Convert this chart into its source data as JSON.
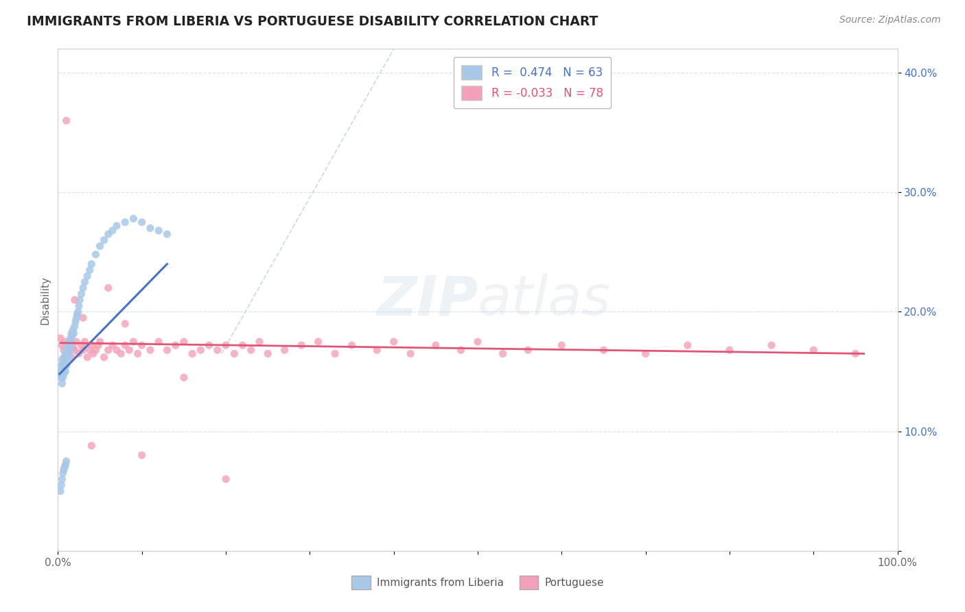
{
  "title": "IMMIGRANTS FROM LIBERIA VS PORTUGUESE DISABILITY CORRELATION CHART",
  "source": "Source: ZipAtlas.com",
  "ylabel": "Disability",
  "xlim": [
    0.0,
    1.0
  ],
  "ylim": [
    0.0,
    0.42
  ],
  "xticks": [
    0.0,
    0.1,
    0.2,
    0.3,
    0.4,
    0.5,
    0.6,
    0.7,
    0.8,
    0.9,
    1.0
  ],
  "xtick_labels": [
    "0.0%",
    "",
    "",
    "",
    "",
    "",
    "",
    "",
    "",
    "",
    "100.0%"
  ],
  "yticks": [
    0.0,
    0.1,
    0.2,
    0.3,
    0.4
  ],
  "ytick_labels": [
    "",
    "10.0%",
    "20.0%",
    "30.0%",
    "40.0%"
  ],
  "color_liberia": "#a8c8e8",
  "color_portuguese": "#f4a0b8",
  "color_line_liberia": "#4472c4",
  "color_line_portuguese": "#e05575",
  "color_trend_dashed": "#b8ccdd",
  "background_color": "#ffffff",
  "grid_color": "#d8e4f0",
  "watermark_zip": "ZIP",
  "watermark_atlas": "atlas",
  "liberia_x": [
    0.002,
    0.003,
    0.004,
    0.004,
    0.005,
    0.005,
    0.006,
    0.006,
    0.007,
    0.007,
    0.008,
    0.008,
    0.009,
    0.009,
    0.01,
    0.01,
    0.011,
    0.011,
    0.012,
    0.012,
    0.013,
    0.013,
    0.014,
    0.015,
    0.015,
    0.016,
    0.016,
    0.017,
    0.018,
    0.019,
    0.02,
    0.021,
    0.022,
    0.023,
    0.024,
    0.025,
    0.026,
    0.028,
    0.03,
    0.032,
    0.035,
    0.038,
    0.04,
    0.045,
    0.05,
    0.055,
    0.06,
    0.065,
    0.07,
    0.08,
    0.09,
    0.1,
    0.11,
    0.12,
    0.13,
    0.003,
    0.004,
    0.005,
    0.006,
    0.007,
    0.008,
    0.009,
    0.01
  ],
  "liberia_y": [
    0.15,
    0.148,
    0.145,
    0.155,
    0.14,
    0.16,
    0.145,
    0.155,
    0.148,
    0.162,
    0.152,
    0.158,
    0.15,
    0.165,
    0.155,
    0.168,
    0.16,
    0.17,
    0.162,
    0.172,
    0.165,
    0.175,
    0.168,
    0.172,
    0.178,
    0.175,
    0.182,
    0.18,
    0.185,
    0.182,
    0.188,
    0.192,
    0.195,
    0.198,
    0.2,
    0.205,
    0.21,
    0.215,
    0.22,
    0.225,
    0.23,
    0.235,
    0.24,
    0.248,
    0.255,
    0.26,
    0.265,
    0.268,
    0.272,
    0.275,
    0.278,
    0.275,
    0.27,
    0.268,
    0.265,
    0.05,
    0.055,
    0.06,
    0.065,
    0.068,
    0.07,
    0.072,
    0.075
  ],
  "portuguese_x": [
    0.003,
    0.005,
    0.007,
    0.008,
    0.01,
    0.012,
    0.013,
    0.015,
    0.016,
    0.018,
    0.02,
    0.022,
    0.025,
    0.028,
    0.03,
    0.032,
    0.035,
    0.038,
    0.04,
    0.042,
    0.045,
    0.048,
    0.05,
    0.055,
    0.06,
    0.065,
    0.07,
    0.075,
    0.08,
    0.085,
    0.09,
    0.095,
    0.1,
    0.11,
    0.12,
    0.13,
    0.14,
    0.15,
    0.16,
    0.17,
    0.18,
    0.19,
    0.2,
    0.21,
    0.22,
    0.23,
    0.24,
    0.25,
    0.27,
    0.29,
    0.31,
    0.33,
    0.35,
    0.38,
    0.4,
    0.42,
    0.45,
    0.48,
    0.5,
    0.53,
    0.56,
    0.6,
    0.65,
    0.7,
    0.75,
    0.8,
    0.85,
    0.9,
    0.95,
    0.01,
    0.02,
    0.03,
    0.04,
    0.06,
    0.08,
    0.1,
    0.15,
    0.2
  ],
  "portuguese_y": [
    0.178,
    0.172,
    0.168,
    0.175,
    0.165,
    0.172,
    0.168,
    0.175,
    0.162,
    0.17,
    0.168,
    0.175,
    0.165,
    0.172,
    0.168,
    0.175,
    0.162,
    0.168,
    0.172,
    0.165,
    0.168,
    0.172,
    0.175,
    0.162,
    0.168,
    0.172,
    0.168,
    0.165,
    0.172,
    0.168,
    0.175,
    0.165,
    0.172,
    0.168,
    0.175,
    0.168,
    0.172,
    0.175,
    0.165,
    0.168,
    0.172,
    0.168,
    0.172,
    0.165,
    0.172,
    0.168,
    0.175,
    0.165,
    0.168,
    0.172,
    0.175,
    0.165,
    0.172,
    0.168,
    0.175,
    0.165,
    0.172,
    0.168,
    0.175,
    0.165,
    0.168,
    0.172,
    0.168,
    0.165,
    0.172,
    0.168,
    0.172,
    0.168,
    0.165,
    0.36,
    0.21,
    0.195,
    0.088,
    0.22,
    0.19,
    0.08,
    0.145,
    0.06
  ],
  "dashed_line": [
    [
      0.195,
      0.165
    ],
    [
      0.4,
      0.42
    ]
  ],
  "blue_line": [
    [
      0.002,
      0.148
    ],
    [
      0.13,
      0.24
    ]
  ],
  "pink_line": [
    [
      0.003,
      0.174
    ],
    [
      0.96,
      0.165
    ]
  ]
}
